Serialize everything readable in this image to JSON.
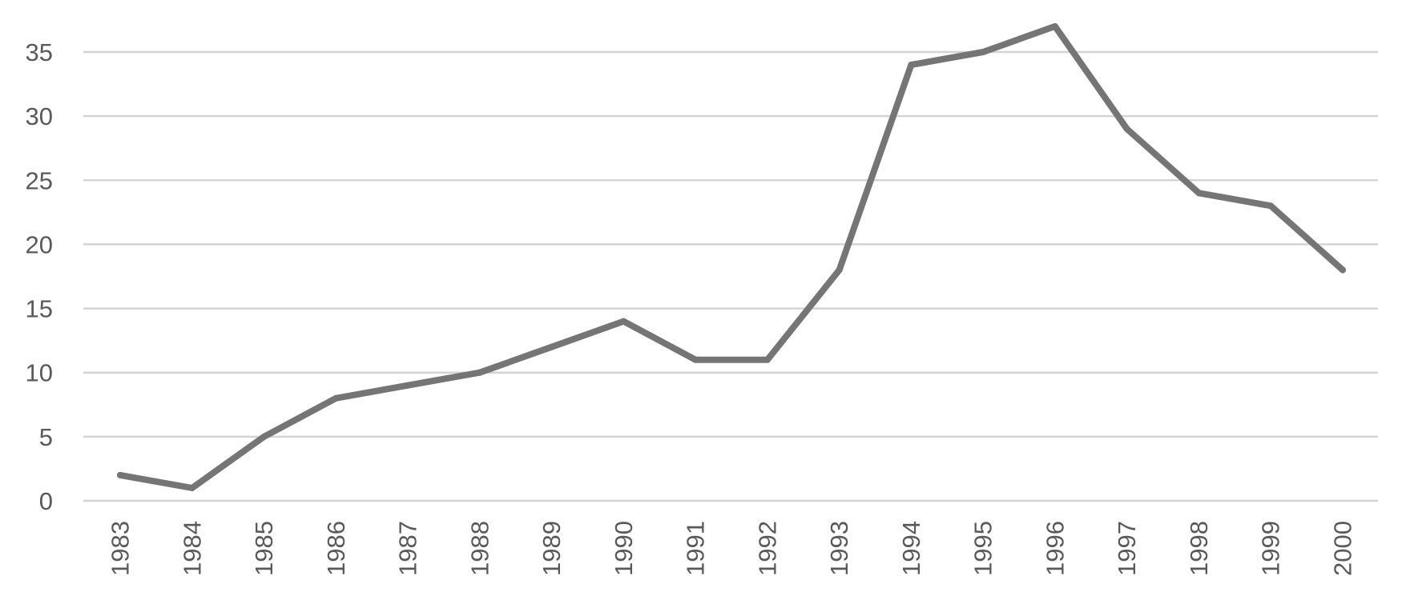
{
  "chart_data": {
    "type": "line",
    "title": "",
    "xlabel": "",
    "ylabel": "",
    "x": [
      "1983",
      "1984",
      "1985",
      "1986",
      "1987",
      "1988",
      "1989",
      "1990",
      "1991",
      "1992",
      "1993",
      "1994",
      "1995",
      "1996",
      "1997",
      "1998",
      "1999",
      "2000"
    ],
    "series": [
      {
        "values": [
          2,
          1,
          5,
          8,
          9,
          10,
          12,
          14,
          11,
          11,
          18,
          34,
          35,
          37,
          29,
          24,
          23,
          18
        ]
      }
    ],
    "ylim": [
      0,
      35
    ],
    "yticks": [
      "0",
      "5",
      "10",
      "15",
      "20",
      "25",
      "30",
      "35"
    ],
    "grid": "horizontal",
    "legend": "none",
    "colors": {
      "line": "#757575",
      "grid": "#d4d4d4",
      "text": "#595959"
    }
  }
}
